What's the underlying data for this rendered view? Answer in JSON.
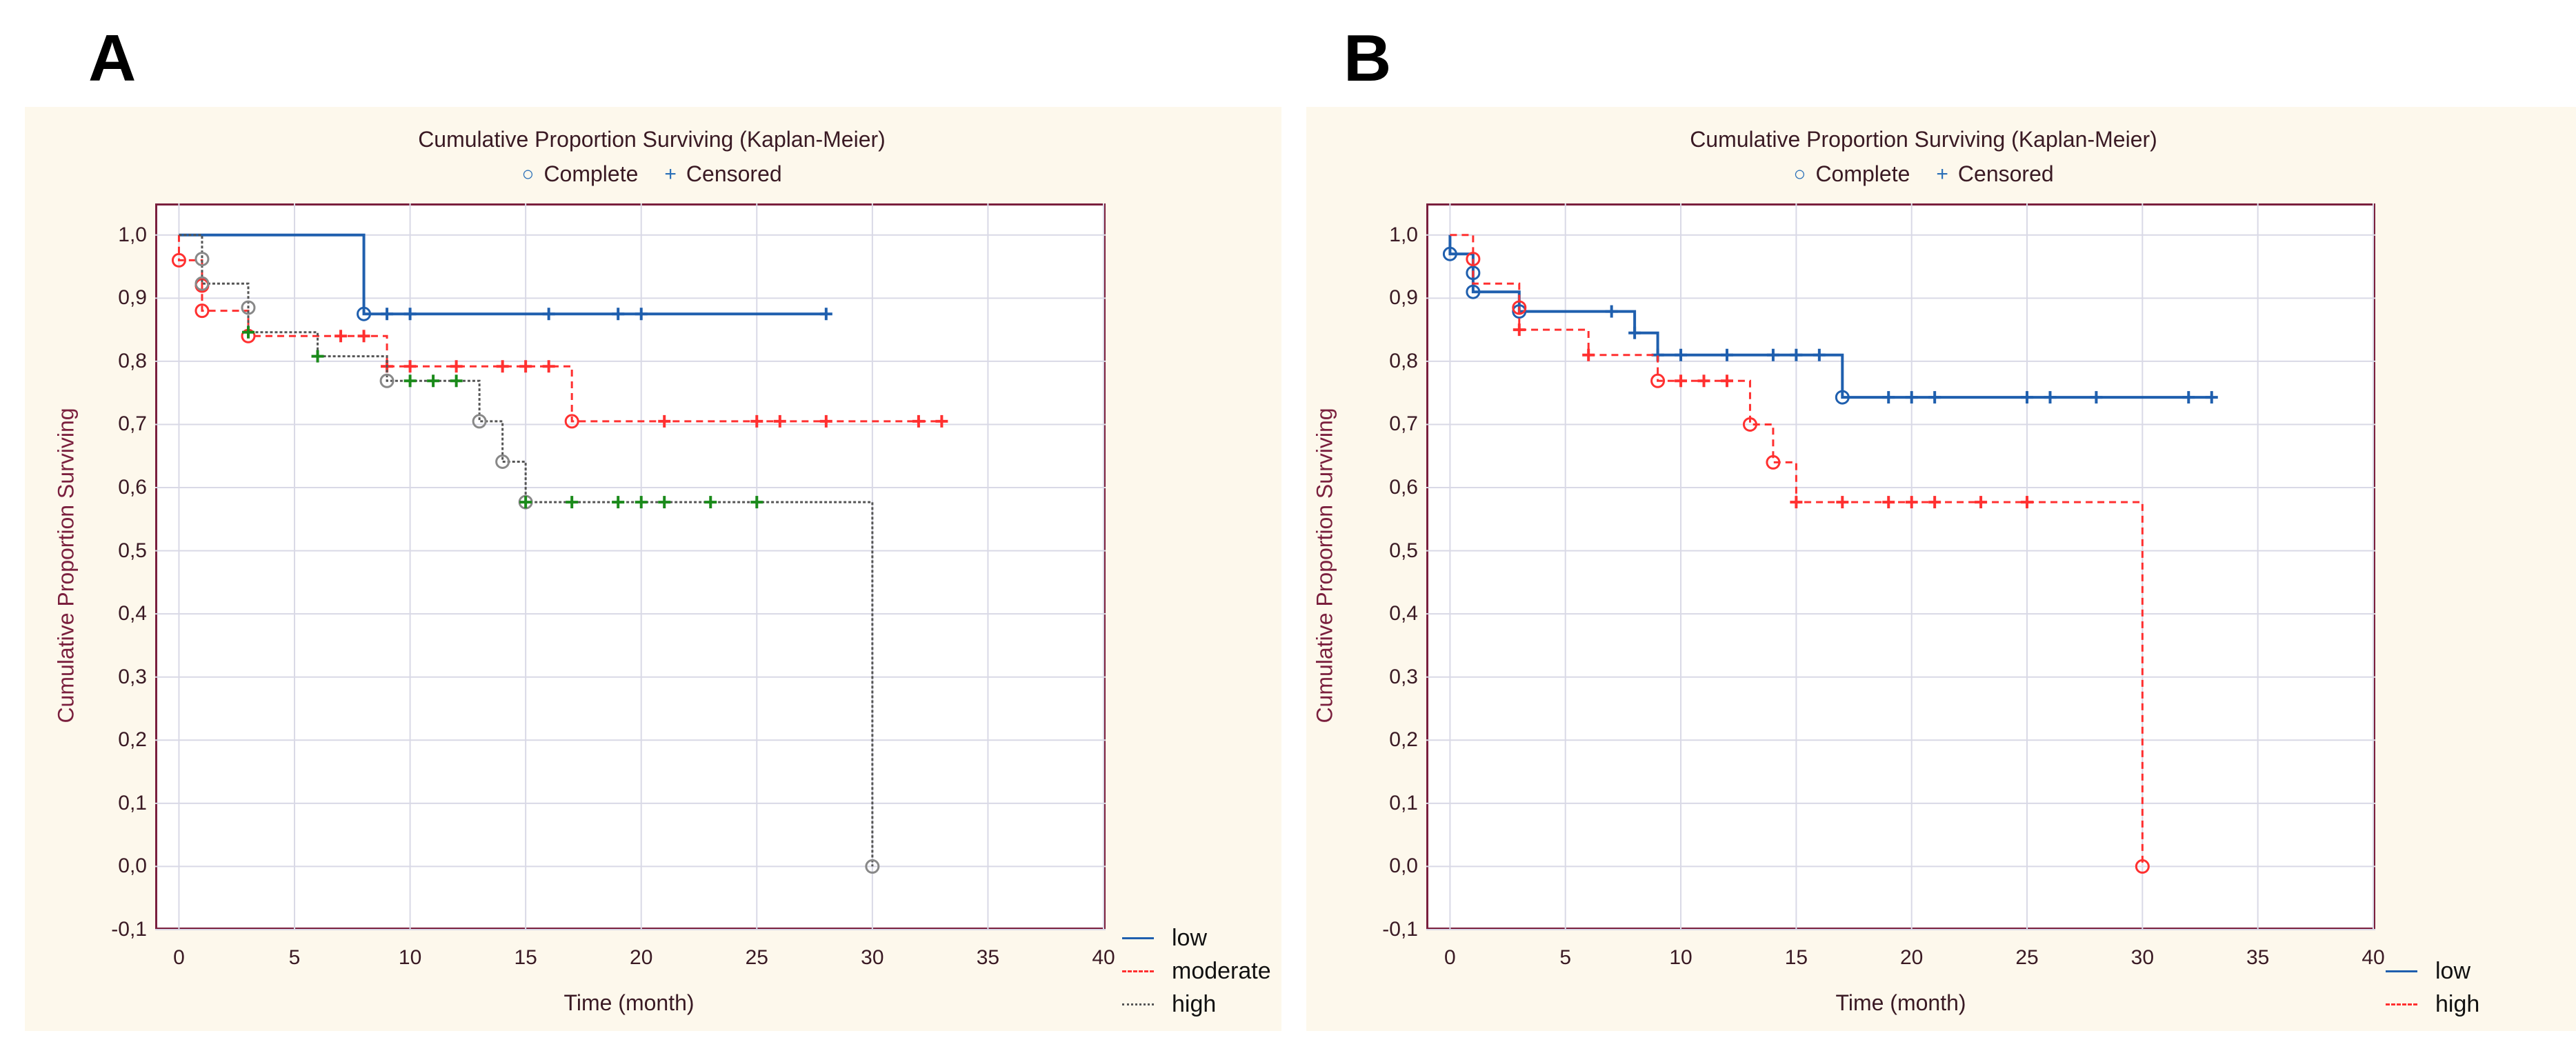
{
  "panels": [
    {
      "letter": "A"
    },
    {
      "letter": "B"
    }
  ],
  "colors": {
    "low": "#1f5fae",
    "moderate": "#ff3030",
    "high": "#555555",
    "high_censor": "#1a8a1a",
    "frame": "#7a1f3d",
    "grid": "#d9d9e6",
    "panel_bg": "#fdf8ec"
  },
  "chart_data": [
    {
      "type": "line",
      "subtype": "kaplan-meier step",
      "title": "Cumulative Proportion Surviving (Kaplan-Meier)",
      "marker_legend": {
        "complete": "Complete",
        "censored": "Censored"
      },
      "xlabel": "Time (month)",
      "ylabel": "Cumulative Proportion Surviving",
      "xlim": [
        0,
        40
      ],
      "ylim": [
        -0.1,
        1.0
      ],
      "xticks": [
        "0",
        "5",
        "10",
        "15",
        "20",
        "25",
        "30",
        "35",
        "40"
      ],
      "yticks": [
        "1,0",
        "0,9",
        "0,8",
        "0,7",
        "0,6",
        "0,5",
        "0,4",
        "0,3",
        "0,2",
        "0,1",
        "0,0",
        "-0,1"
      ],
      "grid": true,
      "legend_position": "bottom-right",
      "series": [
        {
          "name": "low",
          "style": "solid",
          "color": "#1f5fae",
          "censor_color": "#1f5fae",
          "steps": [
            [
              0,
              1.0
            ],
            [
              8,
              0.875
            ]
          ],
          "end": 28,
          "complete": [
            [
              8,
              0.875
            ]
          ],
          "censored": [
            [
              9,
              0.875
            ],
            [
              10,
              0.875
            ],
            [
              16,
              0.875
            ],
            [
              19,
              0.875
            ],
            [
              20,
              0.875
            ],
            [
              28,
              0.875
            ]
          ]
        },
        {
          "name": "moderate",
          "style": "dashed",
          "color": "#ff3030",
          "censor_color": "#ff3030",
          "steps": [
            [
              0,
              1.0
            ],
            [
              0,
              0.96
            ],
            [
              1,
              0.92
            ],
            [
              1,
              0.88
            ],
            [
              3,
              0.84
            ],
            [
              9,
              0.792
            ],
            [
              17,
              0.705
            ]
          ],
          "end": 33,
          "complete": [
            [
              0,
              0.96
            ],
            [
              1,
              0.92
            ],
            [
              1,
              0.88
            ],
            [
              3,
              0.84
            ],
            [
              17,
              0.705
            ]
          ],
          "censored": [
            [
              7,
              0.84
            ],
            [
              8,
              0.84
            ],
            [
              9,
              0.792
            ],
            [
              10,
              0.792
            ],
            [
              12,
              0.792
            ],
            [
              14,
              0.792
            ],
            [
              15,
              0.792
            ],
            [
              16,
              0.792
            ],
            [
              21,
              0.705
            ],
            [
              25,
              0.705
            ],
            [
              26,
              0.705
            ],
            [
              28,
              0.705
            ],
            [
              32,
              0.705
            ],
            [
              33,
              0.705
            ]
          ]
        },
        {
          "name": "high",
          "style": "dotted",
          "color": "#555555",
          "censor_color": "#1a8a1a",
          "steps": [
            [
              0,
              1.0
            ],
            [
              1,
              0.962
            ],
            [
              1,
              0.923
            ],
            [
              3,
              0.885
            ],
            [
              3,
              0.846
            ],
            [
              6,
              0.808
            ],
            [
              9,
              0.769
            ],
            [
              13,
              0.705
            ],
            [
              14,
              0.641
            ],
            [
              15,
              0.577
            ],
            [
              30,
              0.0
            ]
          ],
          "end": 30,
          "complete": [
            [
              1,
              0.962
            ],
            [
              1,
              0.923
            ],
            [
              3,
              0.885
            ],
            [
              9,
              0.769
            ],
            [
              13,
              0.705
            ],
            [
              14,
              0.641
            ],
            [
              15,
              0.577
            ],
            [
              30,
              0.0
            ]
          ],
          "censored": [
            [
              3,
              0.846
            ],
            [
              6,
              0.808
            ],
            [
              10,
              0.769
            ],
            [
              11,
              0.769
            ],
            [
              12,
              0.769
            ],
            [
              15,
              0.577
            ],
            [
              17,
              0.577
            ],
            [
              19,
              0.577
            ],
            [
              20,
              0.577
            ],
            [
              21,
              0.577
            ],
            [
              23,
              0.577
            ],
            [
              25,
              0.577
            ]
          ]
        }
      ]
    },
    {
      "type": "line",
      "subtype": "kaplan-meier step",
      "title": "Cumulative Proportion Surviving (Kaplan-Meier)",
      "marker_legend": {
        "complete": "Complete",
        "censored": "Censored"
      },
      "xlabel": "Time (month)",
      "ylabel": "Cumulative Proportion Surviving",
      "xlim": [
        0,
        40
      ],
      "ylim": [
        -0.1,
        1.0
      ],
      "xticks": [
        "0",
        "5",
        "10",
        "15",
        "20",
        "25",
        "30",
        "35",
        "40"
      ],
      "yticks": [
        "1,0",
        "0,9",
        "0,8",
        "0,7",
        "0,6",
        "0,5",
        "0,4",
        "0,3",
        "0,2",
        "0,1",
        "0,0",
        "-0,1"
      ],
      "grid": true,
      "legend_position": "bottom-right",
      "series": [
        {
          "name": "low",
          "style": "solid",
          "color": "#1f5fae",
          "censor_color": "#1f5fae",
          "steps": [
            [
              0,
              1.0
            ],
            [
              0,
              0.97
            ],
            [
              1,
              0.94
            ],
            [
              1,
              0.91
            ],
            [
              3,
              0.879
            ],
            [
              8,
              0.845
            ],
            [
              9,
              0.81
            ],
            [
              17,
              0.743
            ]
          ],
          "end": 33,
          "complete": [
            [
              0,
              0.97
            ],
            [
              1,
              0.94
            ],
            [
              1,
              0.91
            ],
            [
              3,
              0.879
            ],
            [
              17,
              0.743
            ]
          ],
          "censored": [
            [
              7,
              0.879
            ],
            [
              8,
              0.845
            ],
            [
              9,
              0.81
            ],
            [
              10,
              0.81
            ],
            [
              12,
              0.81
            ],
            [
              14,
              0.81
            ],
            [
              15,
              0.81
            ],
            [
              16,
              0.81
            ],
            [
              19,
              0.743
            ],
            [
              20,
              0.743
            ],
            [
              21,
              0.743
            ],
            [
              25,
              0.743
            ],
            [
              26,
              0.743
            ],
            [
              28,
              0.743
            ],
            [
              32,
              0.743
            ],
            [
              33,
              0.743
            ]
          ]
        },
        {
          "name": "high",
          "style": "dashed",
          "color": "#ff3030",
          "censor_color": "#ff3030",
          "steps": [
            [
              0,
              1.0
            ],
            [
              1,
              0.962
            ],
            [
              1,
              0.923
            ],
            [
              3,
              0.885
            ],
            [
              3,
              0.85
            ],
            [
              6,
              0.81
            ],
            [
              9,
              0.769
            ],
            [
              13,
              0.7
            ],
            [
              14,
              0.64
            ],
            [
              15,
              0.577
            ],
            [
              30,
              0.0
            ]
          ],
          "end": 30,
          "complete": [
            [
              1,
              0.962
            ],
            [
              3,
              0.885
            ],
            [
              9,
              0.769
            ],
            [
              13,
              0.7
            ],
            [
              14,
              0.64
            ],
            [
              30,
              0.0
            ]
          ],
          "censored": [
            [
              3,
              0.85
            ],
            [
              6,
              0.81
            ],
            [
              10,
              0.769
            ],
            [
              11,
              0.769
            ],
            [
              12,
              0.769
            ],
            [
              15,
              0.577
            ],
            [
              17,
              0.577
            ],
            [
              19,
              0.577
            ],
            [
              20,
              0.577
            ],
            [
              21,
              0.577
            ],
            [
              23,
              0.577
            ],
            [
              25,
              0.577
            ]
          ]
        }
      ]
    }
  ]
}
